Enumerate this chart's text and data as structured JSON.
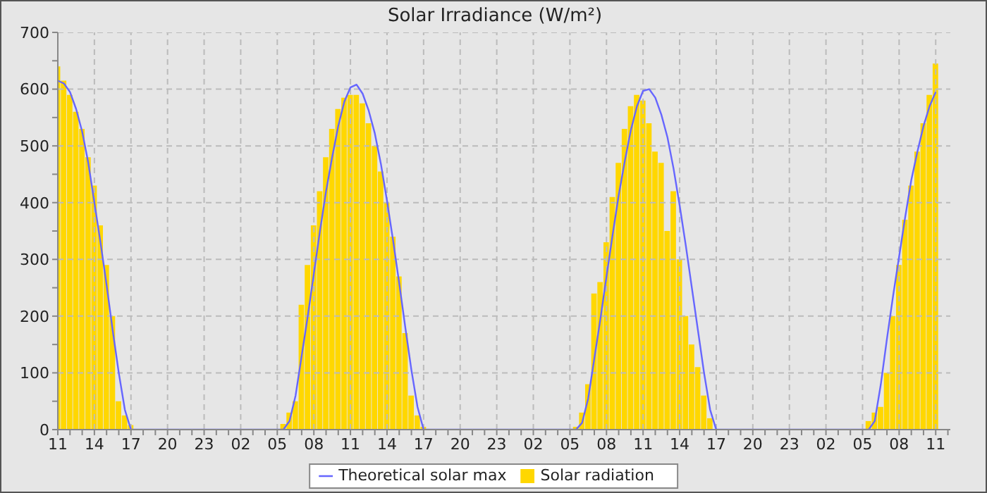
{
  "chart_data": {
    "type": "bar",
    "title": "Solar Irradiance (W/m²)",
    "x": [
      "--01-01T11:00",
      "--01-01T11:30",
      "--01-01T12:00",
      "--01-01T12:30",
      "--01-01T13:00",
      "--01-01T13:30",
      "--01-01T14:00",
      "--01-01T14:30",
      "--01-01T15:00",
      "--01-01T15:30",
      "--01-01T16:00",
      "--01-01T16:30",
      "--01-01T17:00",
      "--01-01T17:30",
      "--01-02T05:30",
      "--01-02T06:00",
      "--01-02T06:30",
      "--01-02T07:00",
      "--01-02T07:30",
      "--01-02T08:00",
      "--01-02T08:30",
      "--01-02T09:00",
      "--01-02T09:30",
      "--01-02T10:00",
      "--01-02T10:30",
      "--01-02T11:00",
      "--01-02T11:30",
      "--01-02T12:00",
      "--01-02T12:30",
      "--01-02T13:00",
      "--01-02T13:30",
      "--01-02T14:00",
      "--01-02T14:30",
      "--01-02T15:00",
      "--01-02T15:30",
      "--01-02T16:00",
      "--01-02T16:30",
      "--01-02T17:00",
      "--01-03T05:30",
      "--01-03T06:00",
      "--01-03T06:30",
      "--01-03T07:00",
      "--01-03T07:30",
      "--01-03T08:00",
      "--01-03T08:30",
      "--01-03T09:00",
      "--01-03T09:30",
      "--01-03T10:00",
      "--01-03T10:30",
      "--01-03T11:00",
      "--01-03T11:30",
      "--01-03T12:00",
      "--01-03T12:30",
      "--01-03T13:00",
      "--01-03T13:30",
      "--01-03T14:00",
      "--01-03T14:30",
      "--01-03T15:00",
      "--01-03T15:30",
      "--01-03T16:00",
      "--01-03T16:30",
      "--01-03T17:00",
      "--01-04T05:30",
      "--01-04T06:00",
      "--01-04T06:30",
      "--01-04T07:00",
      "--01-04T07:30",
      "--01-04T08:00",
      "--01-04T08:30",
      "--01-04T09:00",
      "--01-04T09:30",
      "--01-04T10:00",
      "--01-04T10:30",
      "--01-04T11:00"
    ],
    "series": [
      {
        "name": "Theoretical solar max",
        "type": "line",
        "color": "#6666ff",
        "values": [
          615,
          610,
          595,
          565,
          525,
          470,
          400,
          330,
          255,
          175,
          100,
          35,
          0,
          0,
          0,
          15,
          60,
          130,
          200,
          275,
          350,
          420,
          480,
          535,
          578,
          603,
          608,
          592,
          562,
          522,
          468,
          403,
          333,
          258,
          180,
          105,
          40,
          0,
          0,
          12,
          55,
          125,
          195,
          270,
          343,
          413,
          473,
          528,
          570,
          597,
          600,
          585,
          555,
          515,
          460,
          395,
          325,
          250,
          175,
          100,
          35,
          0,
          0,
          15,
          80,
          160,
          235,
          305,
          375,
          440,
          490,
          535,
          570,
          595
        ]
      },
      {
        "name": "Solar radiation",
        "color": "#ffd700",
        "values": [
          640,
          615,
          590,
          560,
          530,
          480,
          430,
          360,
          290,
          200,
          50,
          25,
          8,
          0,
          10,
          30,
          50,
          220,
          290,
          360,
          420,
          480,
          530,
          565,
          585,
          590,
          590,
          575,
          540,
          500,
          455,
          400,
          340,
          270,
          170,
          60,
          25,
          5,
          5,
          30,
          80,
          240,
          260,
          330,
          410,
          470,
          530,
          570,
          590,
          580,
          540,
          490,
          470,
          350,
          420,
          300,
          200,
          150,
          110,
          60,
          20,
          0,
          15,
          30,
          40,
          100,
          200,
          290,
          370,
          430,
          490,
          540,
          590,
          645
        ]
      }
    ],
    "xlim": [
      "--01-01T11:00",
      "--01-04T12:12"
    ],
    "xticks": [
      {
        "value": "--01-01T11:00",
        "label": "11"
      },
      {
        "value": "--01-01T12:00",
        "label": null
      },
      {
        "value": "--01-01T13:00",
        "label": null
      },
      {
        "value": "--01-01T14:00",
        "label": "14"
      },
      {
        "value": "--01-01T15:00",
        "label": null
      },
      {
        "value": "--01-01T16:00",
        "label": null
      },
      {
        "value": "--01-01T17:00",
        "label": "17"
      },
      {
        "value": "--01-01T18:00",
        "label": null
      },
      {
        "value": "--01-01T19:00",
        "label": null
      },
      {
        "value": "--01-01T20:00",
        "label": "20"
      },
      {
        "value": "--01-01T21:00",
        "label": null
      },
      {
        "value": "--01-01T22:00",
        "label": null
      },
      {
        "value": "--01-01T23:00",
        "label": "23"
      },
      {
        "value": "--01-02T00:00",
        "label": null
      },
      {
        "value": "--01-02T01:00",
        "label": null
      },
      {
        "value": "--01-02T02:00",
        "label": "02"
      },
      {
        "value": "--01-02T03:00",
        "label": null
      },
      {
        "value": "--01-02T04:00",
        "label": null
      },
      {
        "value": "--01-02T05:00",
        "label": "05"
      },
      {
        "value": "--01-02T06:00",
        "label": null
      },
      {
        "value": "--01-02T07:00",
        "label": null
      },
      {
        "value": "--01-02T08:00",
        "label": "08"
      },
      {
        "value": "--01-02T09:00",
        "label": null
      },
      {
        "value": "--01-02T10:00",
        "label": null
      },
      {
        "value": "--01-02T11:00",
        "label": "11"
      },
      {
        "value": "--01-02T12:00",
        "label": null
      },
      {
        "value": "--01-02T13:00",
        "label": null
      },
      {
        "value": "--01-02T14:00",
        "label": "14"
      },
      {
        "value": "--01-02T15:00",
        "label": null
      },
      {
        "value": "--01-02T16:00",
        "label": null
      },
      {
        "value": "--01-02T17:00",
        "label": "17"
      },
      {
        "value": "--01-02T18:00",
        "label": null
      },
      {
        "value": "--01-02T19:00",
        "label": null
      },
      {
        "value": "--01-02T20:00",
        "label": "20"
      },
      {
        "value": "--01-02T21:00",
        "label": null
      },
      {
        "value": "--01-02T22:00",
        "label": null
      },
      {
        "value": "--01-02T23:00",
        "label": "23"
      },
      {
        "value": "--01-03T00:00",
        "label": null
      },
      {
        "value": "--01-03T01:00",
        "label": null
      },
      {
        "value": "--01-03T02:00",
        "label": "02"
      },
      {
        "value": "--01-03T03:00",
        "label": null
      },
      {
        "value": "--01-03T04:00",
        "label": null
      },
      {
        "value": "--01-03T05:00",
        "label": "05"
      },
      {
        "value": "--01-03T06:00",
        "label": null
      },
      {
        "value": "--01-03T07:00",
        "label": null
      },
      {
        "value": "--01-03T08:00",
        "label": "08"
      },
      {
        "value": "--01-03T09:00",
        "label": null
      },
      {
        "value": "--01-03T10:00",
        "label": null
      },
      {
        "value": "--01-03T11:00",
        "label": "11"
      },
      {
        "value": "--01-03T12:00",
        "label": null
      },
      {
        "value": "--01-03T13:00",
        "label": null
      },
      {
        "value": "--01-03T14:00",
        "label": "14"
      },
      {
        "value": "--01-03T15:00",
        "label": null
      },
      {
        "value": "--01-03T16:00",
        "label": null
      },
      {
        "value": "--01-03T17:00",
        "label": "17"
      },
      {
        "value": "--01-03T18:00",
        "label": null
      },
      {
        "value": "--01-03T19:00",
        "label": null
      },
      {
        "value": "--01-03T20:00",
        "label": "20"
      },
      {
        "value": "--01-03T21:00",
        "label": null
      },
      {
        "value": "--01-03T22:00",
        "label": null
      },
      {
        "value": "--01-03T23:00",
        "label": "23"
      },
      {
        "value": "--01-04T00:00",
        "label": null
      },
      {
        "value": "--01-04T01:00",
        "label": null
      },
      {
        "value": "--01-04T02:00",
        "label": "02"
      },
      {
        "value": "--01-04T03:00",
        "label": null
      },
      {
        "value": "--01-04T04:00",
        "label": null
      },
      {
        "value": "--01-04T05:00",
        "label": "05"
      },
      {
        "value": "--01-04T06:00",
        "label": null
      },
      {
        "value": "--01-04T07:00",
        "label": null
      },
      {
        "value": "--01-04T08:00",
        "label": "08"
      },
      {
        "value": "--01-04T09:00",
        "label": null
      },
      {
        "value": "--01-04T10:00",
        "label": null
      },
      {
        "value": "--01-04T11:00",
        "label": "11"
      },
      {
        "value": "--01-04T12:00",
        "label": null
      }
    ],
    "ylim": [
      0,
      700
    ],
    "yticks": [
      0,
      {
        "value": 50,
        "label": null
      },
      100,
      {
        "value": 150,
        "label": null
      },
      200,
      {
        "value": 250,
        "label": null
      },
      300,
      {
        "value": 350,
        "label": null
      },
      400,
      {
        "value": 450,
        "label": null
      },
      500,
      {
        "value": 550,
        "label": null
      },
      600,
      {
        "value": 650,
        "label": null
      },
      700
    ],
    "grid": true,
    "legend": "bottom",
    "marker": "none",
    "line_style": "solid"
  }
}
